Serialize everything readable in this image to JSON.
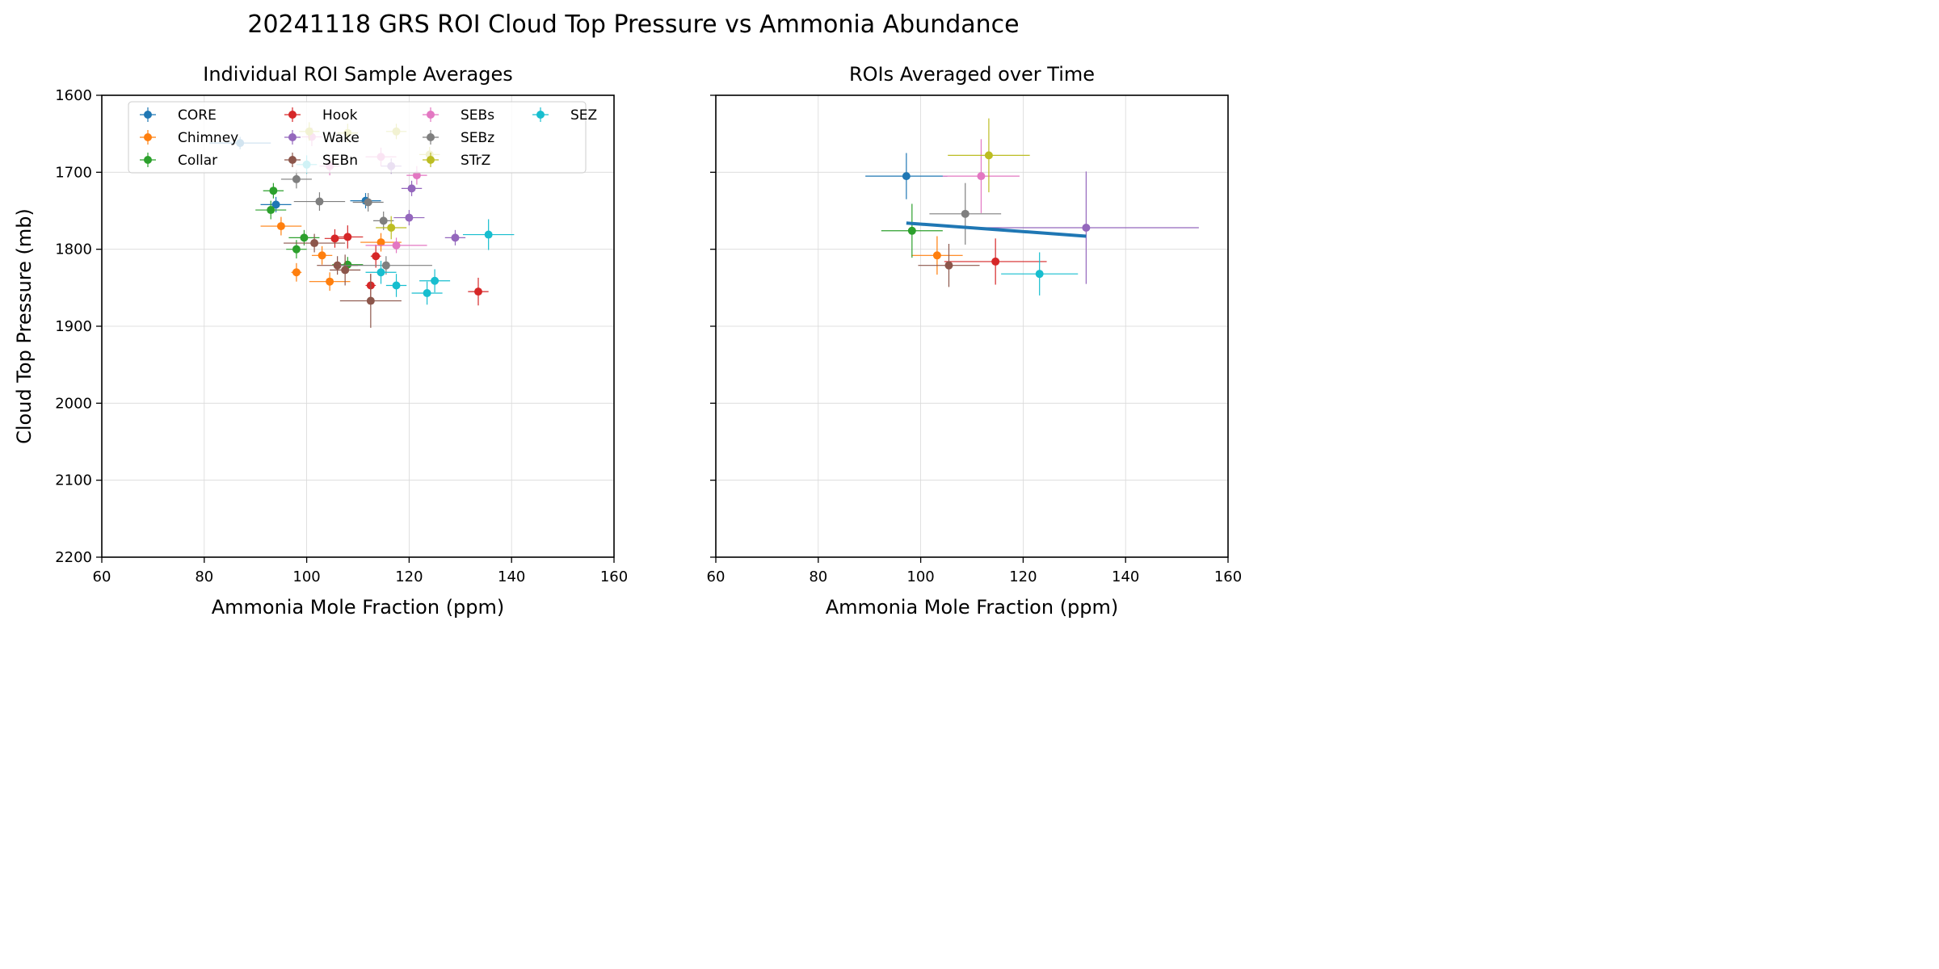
{
  "figure": {
    "title": "20241118 GRS ROI Cloud Top Pressure vs Ammonia Abundance"
  },
  "chart_data": [
    {
      "type": "scatter",
      "title": "Individual ROI Sample Averages",
      "xlabel": "Ammonia Mole Fraction (ppm)",
      "ylabel": "Cloud Top Pressure (mb)",
      "xlim": [
        60,
        160
      ],
      "ylim": [
        2200,
        1600
      ],
      "xticks": [
        "60",
        "80",
        "100",
        "120",
        "140",
        "160"
      ],
      "yticks": [
        "1600",
        "1700",
        "1800",
        "1900",
        "2000",
        "2100",
        "2200"
      ],
      "grid": true,
      "legend": "top-left, 4 columns",
      "series": [
        {
          "name": "CORE",
          "color": "#1f77b4",
          "points": [
            {
              "x": 87,
              "y": 1662,
              "xerr": 6,
              "yerr": 8
            },
            {
              "x": 94,
              "y": 1742,
              "xerr": 3,
              "yerr": 10
            },
            {
              "x": 111.5,
              "y": 1737,
              "xerr": 3,
              "yerr": 10
            }
          ]
        },
        {
          "name": "Chimney",
          "color": "#ff7f0e",
          "points": [
            {
              "x": 95,
              "y": 1770,
              "xerr": 4,
              "yerr": 12
            },
            {
              "x": 98,
              "y": 1830,
              "xerr": 1,
              "yerr": 12
            },
            {
              "x": 103,
              "y": 1808,
              "xerr": 2,
              "yerr": 12
            },
            {
              "x": 104.5,
              "y": 1842,
              "xerr": 4,
              "yerr": 12
            },
            {
              "x": 114.5,
              "y": 1791,
              "xerr": 4,
              "yerr": 12
            }
          ]
        },
        {
          "name": "Collar",
          "color": "#2ca02c",
          "points": [
            {
              "x": 93.5,
              "y": 1724,
              "xerr": 2,
              "yerr": 10
            },
            {
              "x": 93,
              "y": 1749,
              "xerr": 3,
              "yerr": 12
            },
            {
              "x": 98,
              "y": 1800,
              "xerr": 2,
              "yerr": 12
            },
            {
              "x": 99.5,
              "y": 1785,
              "xerr": 3,
              "yerr": 10
            },
            {
              "x": 108,
              "y": 1820,
              "xerr": 3,
              "yerr": 10
            }
          ]
        },
        {
          "name": "Hook",
          "color": "#d62728",
          "points": [
            {
              "x": 105.5,
              "y": 1786,
              "xerr": 2,
              "yerr": 12
            },
            {
              "x": 108,
              "y": 1784,
              "xerr": 3,
              "yerr": 15
            },
            {
              "x": 113.5,
              "y": 1809,
              "xerr": 1,
              "yerr": 15
            },
            {
              "x": 112.5,
              "y": 1847,
              "xerr": 1,
              "yerr": 15
            },
            {
              "x": 133.5,
              "y": 1855,
              "xerr": 2,
              "yerr": 18
            }
          ]
        },
        {
          "name": "Wake",
          "color": "#9467bd",
          "points": [
            {
              "x": 116.5,
              "y": 1692,
              "xerr": 2,
              "yerr": 10
            },
            {
              "x": 120.5,
              "y": 1721,
              "xerr": 2,
              "yerr": 10
            },
            {
              "x": 120,
              "y": 1759,
              "xerr": 3,
              "yerr": 10
            },
            {
              "x": 129,
              "y": 1785,
              "xerr": 2,
              "yerr": 10
            }
          ]
        },
        {
          "name": "SEBn",
          "color": "#8c564b",
          "points": [
            {
              "x": 101.5,
              "y": 1792,
              "xerr": 6,
              "yerr": 12
            },
            {
              "x": 106,
              "y": 1821,
              "xerr": 4,
              "yerr": 12
            },
            {
              "x": 107.5,
              "y": 1827,
              "xerr": 3,
              "yerr": 20
            },
            {
              "x": 112.5,
              "y": 1867,
              "xerr": 6,
              "yerr": 35
            }
          ]
        },
        {
          "name": "SEBs",
          "color": "#e377c2",
          "points": [
            {
              "x": 101,
              "y": 1654,
              "xerr": 2,
              "yerr": 12
            },
            {
              "x": 104.5,
              "y": 1692,
              "xerr": 2,
              "yerr": 12
            },
            {
              "x": 114.5,
              "y": 1680,
              "xerr": 3,
              "yerr": 12
            },
            {
              "x": 121.5,
              "y": 1704,
              "xerr": 2,
              "yerr": 12
            },
            {
              "x": 117.5,
              "y": 1795,
              "xerr": 6,
              "yerr": 10
            }
          ]
        },
        {
          "name": "SEBz",
          "color": "#7f7f7f",
          "points": [
            {
              "x": 98,
              "y": 1709,
              "xerr": 3,
              "yerr": 12
            },
            {
              "x": 102.5,
              "y": 1738,
              "xerr": 5,
              "yerr": 12
            },
            {
              "x": 112,
              "y": 1739,
              "xerr": 3,
              "yerr": 12
            },
            {
              "x": 115,
              "y": 1763,
              "xerr": 2,
              "yerr": 12
            },
            {
              "x": 115.5,
              "y": 1821,
              "xerr": 9,
              "yerr": 12
            }
          ]
        },
        {
          "name": "STrZ",
          "color": "#bcbd22",
          "points": [
            {
              "x": 100.5,
              "y": 1647,
              "xerr": 2,
              "yerr": 12
            },
            {
              "x": 108,
              "y": 1649,
              "xerr": 2,
              "yerr": 12
            },
            {
              "x": 117.5,
              "y": 1647,
              "xerr": 2,
              "yerr": 10
            },
            {
              "x": 124,
              "y": 1677,
              "xerr": 2,
              "yerr": 10
            },
            {
              "x": 116.5,
              "y": 1772,
              "xerr": 3,
              "yerr": 15
            }
          ]
        },
        {
          "name": "SEZ",
          "color": "#17becf",
          "points": [
            {
              "x": 100,
              "y": 1690,
              "xerr": 2,
              "yerr": 12
            },
            {
              "x": 114.5,
              "y": 1830,
              "xerr": 3,
              "yerr": 15
            },
            {
              "x": 117.5,
              "y": 1847,
              "xerr": 2,
              "yerr": 15
            },
            {
              "x": 123.5,
              "y": 1857,
              "xerr": 3,
              "yerr": 15
            },
            {
              "x": 125,
              "y": 1841,
              "xerr": 3,
              "yerr": 15
            },
            {
              "x": 135.5,
              "y": 1781,
              "xerr": 5,
              "yerr": 20
            }
          ]
        }
      ]
    },
    {
      "type": "scatter",
      "title": "ROIs Averaged over Time",
      "xlabel": "Ammonia Mole Fraction (ppm)",
      "xlim": [
        60,
        160
      ],
      "ylim": [
        2200,
        1600
      ],
      "xticks": [
        "60",
        "80",
        "100",
        "120",
        "140",
        "160"
      ],
      "grid": true,
      "series": [
        {
          "name": "CORE",
          "color": "#1f77b4",
          "points": [
            {
              "x": 97.2,
              "y": 1705,
              "xerr": 8,
              "yerr": 30
            }
          ]
        },
        {
          "name": "Chimney",
          "color": "#ff7f0e",
          "points": [
            {
              "x": 103.2,
              "y": 1808,
              "xerr": 5,
              "yerr": 25
            }
          ]
        },
        {
          "name": "Collar",
          "color": "#2ca02c",
          "points": [
            {
              "x": 98.3,
              "y": 1776,
              "xerr": 6,
              "yerr": 35
            }
          ]
        },
        {
          "name": "Hook",
          "color": "#d62728",
          "points": [
            {
              "x": 114.6,
              "y": 1816,
              "xerr": 10,
              "yerr": 30
            }
          ]
        },
        {
          "name": "Wake",
          "color": "#9467bd",
          "points": [
            {
              "x": 132.3,
              "y": 1772,
              "xerr": 22,
              "yerr": 73
            }
          ]
        },
        {
          "name": "SEBn",
          "color": "#8c564b",
          "points": [
            {
              "x": 105.5,
              "y": 1821,
              "xerr": 6,
              "yerr": 28
            }
          ]
        },
        {
          "name": "SEBs",
          "color": "#e377c2",
          "points": [
            {
              "x": 111.8,
              "y": 1705,
              "xerr": 7.5,
              "yerr": 48
            }
          ]
        },
        {
          "name": "SEBz",
          "color": "#7f7f7f",
          "points": [
            {
              "x": 108.7,
              "y": 1754,
              "xerr": 7,
              "yerr": 40
            }
          ]
        },
        {
          "name": "STrZ",
          "color": "#bcbd22",
          "points": [
            {
              "x": 113.3,
              "y": 1678,
              "xerr": 8,
              "yerr": 48
            }
          ]
        },
        {
          "name": "SEZ",
          "color": "#17becf",
          "points": [
            {
              "x": 123.2,
              "y": 1832,
              "xerr": 7.5,
              "yerr": 28
            }
          ]
        }
      ],
      "fit_line": {
        "color": "#1f77b4",
        "points": [
          {
            "x": 97.2,
            "y": 1766
          },
          {
            "x": 132.3,
            "y": 1783
          }
        ]
      }
    }
  ]
}
